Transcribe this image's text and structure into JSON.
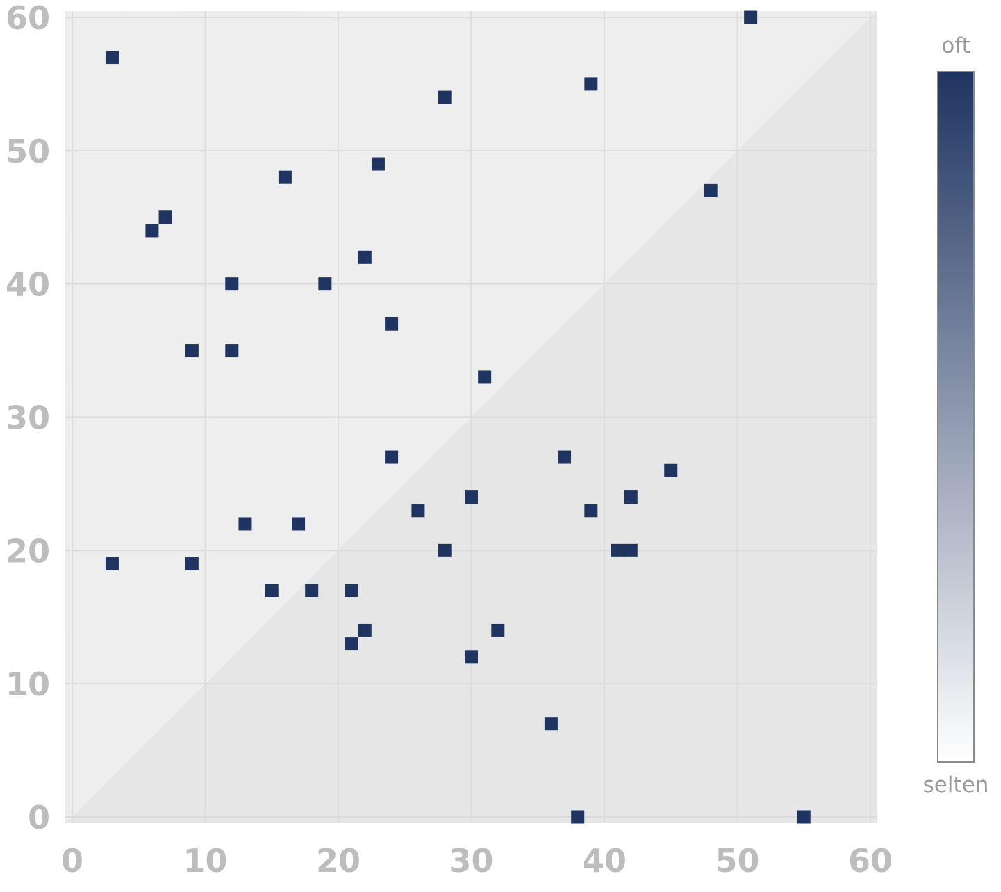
{
  "chart_data": {
    "type": "heatmap",
    "title": "",
    "xlabel": "",
    "ylabel": "",
    "xlim": [
      0,
      60
    ],
    "ylim": [
      0,
      60
    ],
    "x_ticks": [
      "0",
      "10",
      "20",
      "30",
      "40",
      "50",
      "60"
    ],
    "y_ticks": [
      "0",
      "10",
      "20",
      "30",
      "40",
      "50",
      "60"
    ],
    "grid": true,
    "cell_color": "#1f3461",
    "colorscale": [
      "#ffffff",
      "#1f3461"
    ],
    "legend": {
      "type": "colorbar",
      "placement": "right",
      "top_label": "oft",
      "bottom_label": "selten"
    },
    "points": [
      {
        "x": 3,
        "y": 57
      },
      {
        "x": 3,
        "y": 19
      },
      {
        "x": 6,
        "y": 44
      },
      {
        "x": 7,
        "y": 45
      },
      {
        "x": 9,
        "y": 35
      },
      {
        "x": 9,
        "y": 19
      },
      {
        "x": 12,
        "y": 40
      },
      {
        "x": 12,
        "y": 35
      },
      {
        "x": 13,
        "y": 22
      },
      {
        "x": 15,
        "y": 17
      },
      {
        "x": 16,
        "y": 48
      },
      {
        "x": 17,
        "y": 22
      },
      {
        "x": 18,
        "y": 17
      },
      {
        "x": 19,
        "y": 40
      },
      {
        "x": 21,
        "y": 17
      },
      {
        "x": 21,
        "y": 13
      },
      {
        "x": 22,
        "y": 42
      },
      {
        "x": 22,
        "y": 14
      },
      {
        "x": 23,
        "y": 49
      },
      {
        "x": 24,
        "y": 37
      },
      {
        "x": 24,
        "y": 27
      },
      {
        "x": 26,
        "y": 23
      },
      {
        "x": 28,
        "y": 54
      },
      {
        "x": 28,
        "y": 20
      },
      {
        "x": 30,
        "y": 24
      },
      {
        "x": 30,
        "y": 12
      },
      {
        "x": 31,
        "y": 33
      },
      {
        "x": 32,
        "y": 14
      },
      {
        "x": 36,
        "y": 7
      },
      {
        "x": 37,
        "y": 27
      },
      {
        "x": 38,
        "y": 0
      },
      {
        "x": 39,
        "y": 55
      },
      {
        "x": 39,
        "y": 23
      },
      {
        "x": 41,
        "y": 20
      },
      {
        "x": 42,
        "y": 24
      },
      {
        "x": 42,
        "y": 20
      },
      {
        "x": 45,
        "y": 26
      },
      {
        "x": 48,
        "y": 47
      },
      {
        "x": 51,
        "y": 60
      },
      {
        "x": 55,
        "y": 0
      }
    ]
  }
}
